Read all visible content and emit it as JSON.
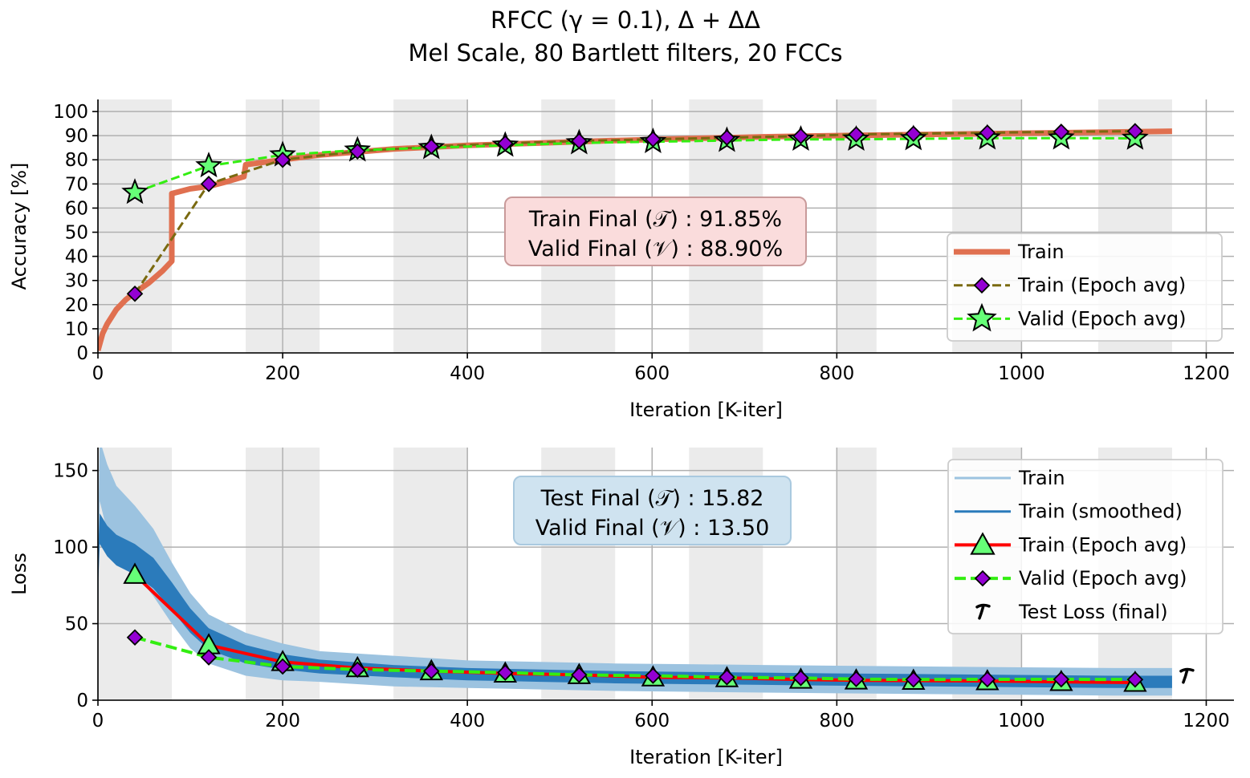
{
  "title": {
    "line1": "RFCC (γ = 0.1), Δ + ΔΔ",
    "line2": "Mel Scale, 80 Bartlett filters, 20 FCCs"
  },
  "colors": {
    "train_acc": "#e07050",
    "train_epoch_acc": "#7a6a10",
    "valid_epoch": "#33ee11",
    "star_fill": "#66ff77",
    "diamond_fill": "#9400d3",
    "loss_raw": "#9cc3e0",
    "loss_smooth": "#2b7bbb",
    "loss_epoch": "#ff0000",
    "acc_box_fill": "#fadcdc",
    "acc_box_edge": "#c99a9a",
    "loss_box_fill": "#cfe3f0",
    "loss_box_edge": "#a9c9df",
    "band": "#ebebeb",
    "grid": "#b0b0b0"
  },
  "chart_data": [
    {
      "type": "line",
      "xlabel": "Iteration [K-iter]",
      "ylabel": "Accuracy [%]",
      "xlim": [
        0,
        1230
      ],
      "ylim": [
        0,
        105
      ],
      "xticks": [
        0,
        200,
        400,
        600,
        800,
        1000,
        1200
      ],
      "yticks": [
        0,
        10,
        20,
        30,
        40,
        50,
        60,
        70,
        80,
        90,
        100
      ],
      "epoch_bands": [
        [
          0,
          80
        ],
        [
          160,
          240
        ],
        [
          320,
          400
        ],
        [
          480,
          560
        ],
        [
          640,
          720
        ],
        [
          800,
          843
        ],
        [
          925,
          1000
        ],
        [
          1083,
          1163
        ]
      ],
      "grid": true,
      "legend_position": "lower right",
      "legend": [
        "Train",
        "Train (Epoch avg)",
        "Valid (Epoch avg)"
      ],
      "annotation": [
        "Train Final (𝒯) :  91.85%",
        "Valid Final (𝒱) :  88.90%"
      ],
      "series": [
        {
          "name": "Train",
          "x": [
            0,
            5,
            10,
            20,
            30,
            40,
            55,
            70,
            80,
            80,
            100,
            120,
            140,
            158,
            160,
            200,
            240,
            320,
            400,
            480,
            560,
            640,
            720,
            800,
            900,
            1000,
            1100,
            1163
          ],
          "y": [
            1,
            8,
            12,
            18,
            22,
            25,
            29,
            34,
            38,
            66,
            68,
            69,
            71,
            73,
            78,
            80,
            82,
            84.5,
            86,
            87,
            88,
            88.8,
            89.5,
            90,
            90.5,
            91,
            91.5,
            91.85
          ]
        },
        {
          "name": "Train (Epoch avg)",
          "x": [
            40,
            120,
            200,
            281,
            361,
            441,
            521,
            601,
            681,
            761,
            821,
            883,
            963,
            1043,
            1123
          ],
          "y": [
            24.5,
            70,
            80,
            83.5,
            85.5,
            86.8,
            87.8,
            88.5,
            89.2,
            89.8,
            90.5,
            90.8,
            91.2,
            91.6,
            91.85
          ]
        },
        {
          "name": "Valid (Epoch avg)",
          "x": [
            40,
            120,
            200,
            281,
            361,
            441,
            521,
            601,
            681,
            761,
            821,
            883,
            963,
            1043,
            1123
          ],
          "y": [
            66.5,
            77.5,
            82,
            84,
            85,
            86,
            87,
            87.5,
            88,
            88.5,
            88.5,
            88.7,
            89,
            89,
            88.9
          ]
        }
      ]
    },
    {
      "type": "line",
      "xlabel": "Iteration [K-iter]",
      "ylabel": "Loss",
      "xlim": [
        0,
        1230
      ],
      "ylim": [
        0,
        165
      ],
      "xticks": [
        0,
        200,
        400,
        600,
        800,
        1000,
        1200
      ],
      "yticks": [
        0,
        50,
        100,
        150
      ],
      "epoch_bands": [
        [
          0,
          80
        ],
        [
          160,
          240
        ],
        [
          320,
          400
        ],
        [
          480,
          560
        ],
        [
          640,
          720
        ],
        [
          800,
          843
        ],
        [
          925,
          1000
        ],
        [
          1083,
          1163
        ]
      ],
      "grid": true,
      "legend_position": "upper right",
      "legend": [
        "Train",
        "Train (smoothed)",
        "Train (Epoch avg)",
        "Valid (Epoch avg)",
        "Test Loss (final)"
      ],
      "annotation": [
        "Test Final (𝒯) :  15.82",
        "Valid Final (𝒱) :  13.50"
      ],
      "series": [
        {
          "name": "Train",
          "x": [
            0,
            2,
            10,
            20,
            40,
            60,
            80,
            100,
            120,
            160,
            200,
            240,
            320,
            400,
            480,
            560,
            640,
            720,
            800,
            900,
            1000,
            1100,
            1163
          ],
          "y": [
            72,
            150,
            132,
            118,
            105,
            90,
            70,
            52,
            40,
            30,
            25,
            22,
            19,
            17,
            16,
            15,
            14.5,
            14,
            13.5,
            13,
            12.5,
            12,
            12
          ],
          "band": [
            35,
            20,
            22,
            22,
            22,
            22,
            20,
            18,
            16,
            14,
            12,
            10,
            10,
            9,
            9,
            9,
            9,
            9,
            9,
            9,
            9,
            9,
            9
          ]
        },
        {
          "name": "Train (smoothed)",
          "x": [
            0,
            2,
            10,
            20,
            40,
            60,
            80,
            100,
            120,
            160,
            200,
            240,
            320,
            400,
            480,
            560,
            640,
            720,
            800,
            900,
            1000,
            1100,
            1163
          ],
          "y": [
            85,
            112,
            104,
            98,
            92,
            83,
            68,
            52,
            40,
            30,
            25,
            22,
            19,
            17,
            16,
            15,
            14.5,
            14,
            13.5,
            13,
            12.5,
            12,
            12
          ],
          "band": [
            12,
            10,
            10,
            10,
            10,
            10,
            9,
            8,
            7,
            6,
            5,
            4.5,
            4,
            4,
            4,
            4,
            4,
            4,
            4,
            4,
            4,
            4,
            4
          ]
        },
        {
          "name": "Train (Epoch avg)",
          "x": [
            40,
            120,
            200,
            281,
            361,
            441,
            521,
            601,
            681,
            761,
            821,
            883,
            963,
            1043,
            1123
          ],
          "y": [
            82,
            36,
            25,
            21,
            19,
            17.5,
            16.5,
            15,
            14.5,
            13.5,
            13,
            12.8,
            12.5,
            12,
            11.5
          ]
        },
        {
          "name": "Valid (Epoch avg)",
          "x": [
            40,
            120,
            200,
            281,
            361,
            441,
            521,
            601,
            681,
            761,
            821,
            883,
            963,
            1043,
            1123
          ],
          "y": [
            41,
            28,
            22,
            20,
            19,
            18,
            16.5,
            16,
            15,
            14.5,
            13.8,
            13.5,
            13.6,
            13.6,
            13.5
          ]
        },
        {
          "name": "Test Loss (final)",
          "x": [
            1163
          ],
          "y": [
            15.82
          ]
        }
      ]
    }
  ]
}
